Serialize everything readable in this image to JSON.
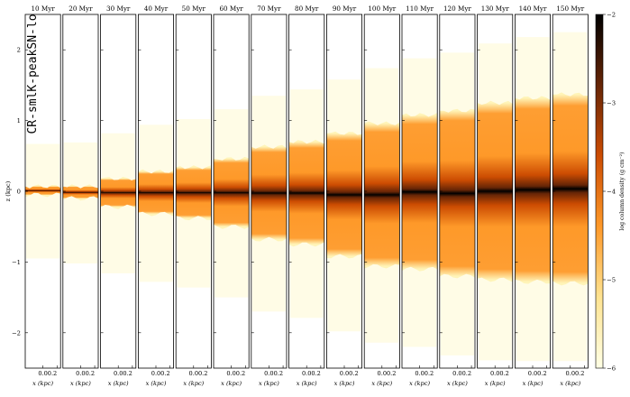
{
  "chart_data": {
    "type": "heatmap",
    "run_label": "CR-smlK-peakSN-lo",
    "panel_titles": [
      "10 Myr",
      "20 Myr",
      "30 Myr",
      "40 Myr",
      "50 Myr",
      "60 Myr",
      "70 Myr",
      "80 Myr",
      "90 Myr",
      "100 Myr",
      "110 Myr",
      "120 Myr",
      "130 Myr",
      "140 Myr",
      "150 Myr"
    ],
    "times_myr": [
      10,
      20,
      30,
      40,
      50,
      60,
      70,
      80,
      90,
      100,
      110,
      120,
      130,
      140,
      150
    ],
    "disk_top_z_kpc": [
      0.07,
      0.07,
      0.18,
      0.28,
      0.34,
      0.46,
      0.63,
      0.7,
      0.82,
      0.96,
      1.08,
      1.14,
      1.25,
      1.32,
      1.37
    ],
    "disk_bottom_z_kpc": [
      -0.05,
      -0.1,
      -0.22,
      -0.32,
      -0.38,
      -0.5,
      -0.68,
      -0.75,
      -0.92,
      -1.06,
      -1.1,
      -1.2,
      -1.25,
      -1.28,
      -1.3
    ],
    "xlim": [
      -0.25,
      0.25
    ],
    "ylim": [
      -2.5,
      2.5
    ],
    "x_tick_values": [
      0.0,
      0.2
    ],
    "x_tick_labels": [
      "0.0",
      "0.2"
    ],
    "y_tick_values": [
      2,
      1,
      0,
      -1,
      -2
    ],
    "y_tick_labels": [
      "2",
      "1",
      "0",
      "−1",
      "−2"
    ],
    "xlabel": "x (kpc)",
    "ylabel": "z (kpc)",
    "colorbar": {
      "label": "log column density (g cm⁻²)",
      "range": [
        -6,
        -2
      ],
      "tick_values": [
        -2,
        -3,
        -4,
        -5,
        -6
      ],
      "tick_labels": [
        "−2",
        "−3",
        "−4",
        "−5",
        "−6"
      ],
      "colormap": "YlOrBr-to-black",
      "stops": [
        "#ffffe5",
        "#fee391",
        "#fe9929",
        "#cc4c02",
        "#662506",
        "#000000"
      ]
    }
  }
}
